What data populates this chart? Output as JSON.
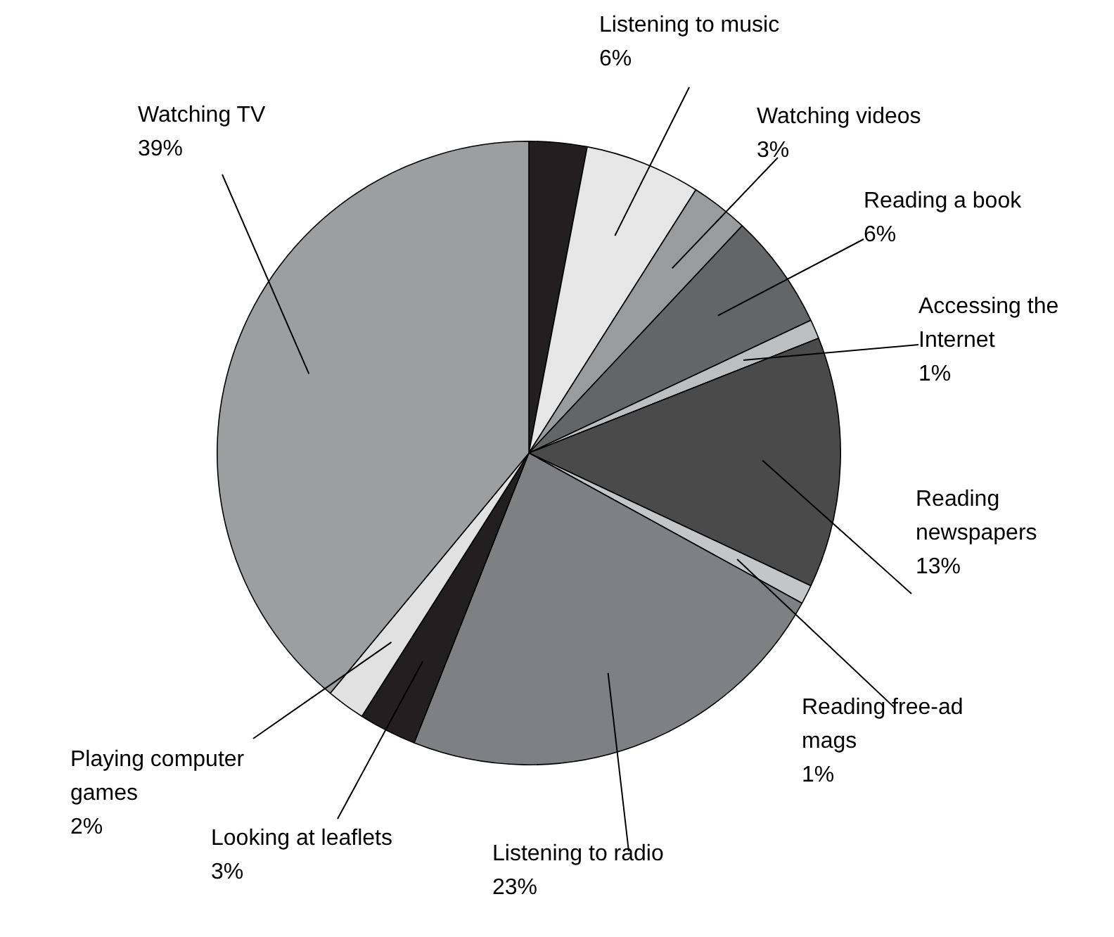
{
  "chart_data": {
    "type": "pie",
    "categories": [
      null,
      "Listening to music",
      "Watching videos",
      "Reading a book",
      "Accessing the Internet",
      "Reading newspapers",
      "Reading free-ad mags",
      "Listening to radio",
      "Looking at leaflets",
      "Playing computer games",
      "Watching TV"
    ],
    "values": [
      3,
      6,
      3,
      6,
      1,
      13,
      1,
      23,
      3,
      2,
      39
    ],
    "value_labels": [
      null,
      "6%",
      "3%",
      "6%",
      "1%",
      "13%",
      "1%",
      "23%",
      "3%",
      "2%",
      "39%"
    ],
    "colors": [
      "#231f20",
      "#e6e6e7",
      "#9a9b9d",
      "#646567",
      "#bdbec0",
      "#4a4a4b",
      "#c4c5c7",
      "#7f8083",
      "#231f20",
      "#e1e1e2",
      "#9d9ea0"
    ],
    "legend": false
  }
}
